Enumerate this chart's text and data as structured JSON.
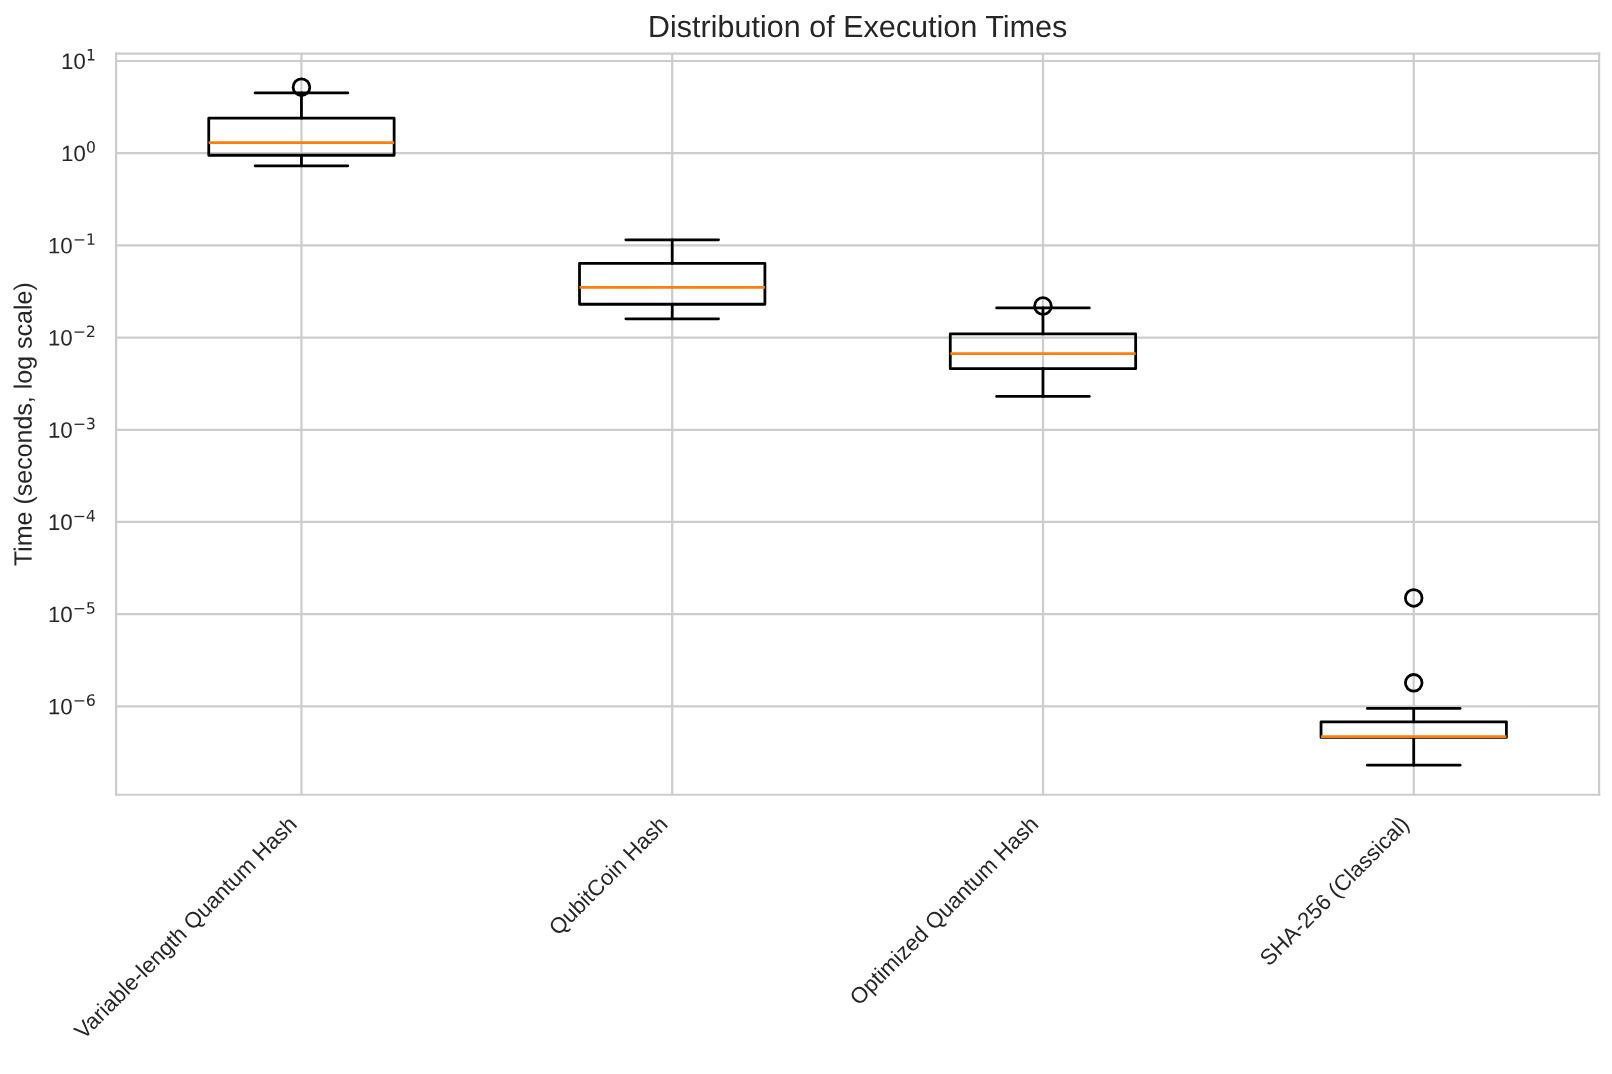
{
  "chart_data": {
    "type": "box",
    "title": "Distribution of Execution Times",
    "ylabel": "Time (seconds, log scale)",
    "categories": [
      "Variable-length Quantum Hash",
      "QubitCoin Hash",
      "Optimized Quantum Hash",
      "SHA-256 (Classical)"
    ],
    "boxes": [
      {
        "low": 0.73,
        "q1": 0.95,
        "median": 1.3,
        "q3": 2.4,
        "high": 4.5,
        "outliers": [
          5.2
        ]
      },
      {
        "low": 0.016,
        "q1": 0.023,
        "median": 0.035,
        "q3": 0.064,
        "high": 0.115
      },
      {
        "low": 0.0023,
        "q1": 0.0046,
        "median": 0.0067,
        "q3": 0.011,
        "high": 0.021,
        "outliers": [
          0.022
        ]
      },
      {
        "low": 2.3e-07,
        "q1": 4.6e-07,
        "median": 4.7e-07,
        "q3": 6.8e-07,
        "high": 9.5e-07,
        "outliers": [
          1.8e-06,
          1.5e-05
        ]
      }
    ],
    "color": "#000000",
    "log": true,
    "ylim": [
      1.1e-07,
      12
    ],
    "yticks": [
      {
        "value": 1e-06,
        "label": "10$^{−6}$"
      },
      {
        "value": 1e-05,
        "label": "10$^{−5}$"
      },
      {
        "value": 0.0001,
        "label": "10$^{−4}$"
      },
      {
        "value": 0.001,
        "label": "10$^{−3}$"
      },
      {
        "value": 0.01,
        "label": "10$^{−2}$"
      },
      {
        "value": 0.1,
        "label": "10$^{−1}$"
      },
      {
        "value": 1,
        "label": "10$^{0}$"
      },
      {
        "value": 10,
        "label": "10$^{1}$"
      }
    ],
    "grid": true,
    "legend": false
  }
}
